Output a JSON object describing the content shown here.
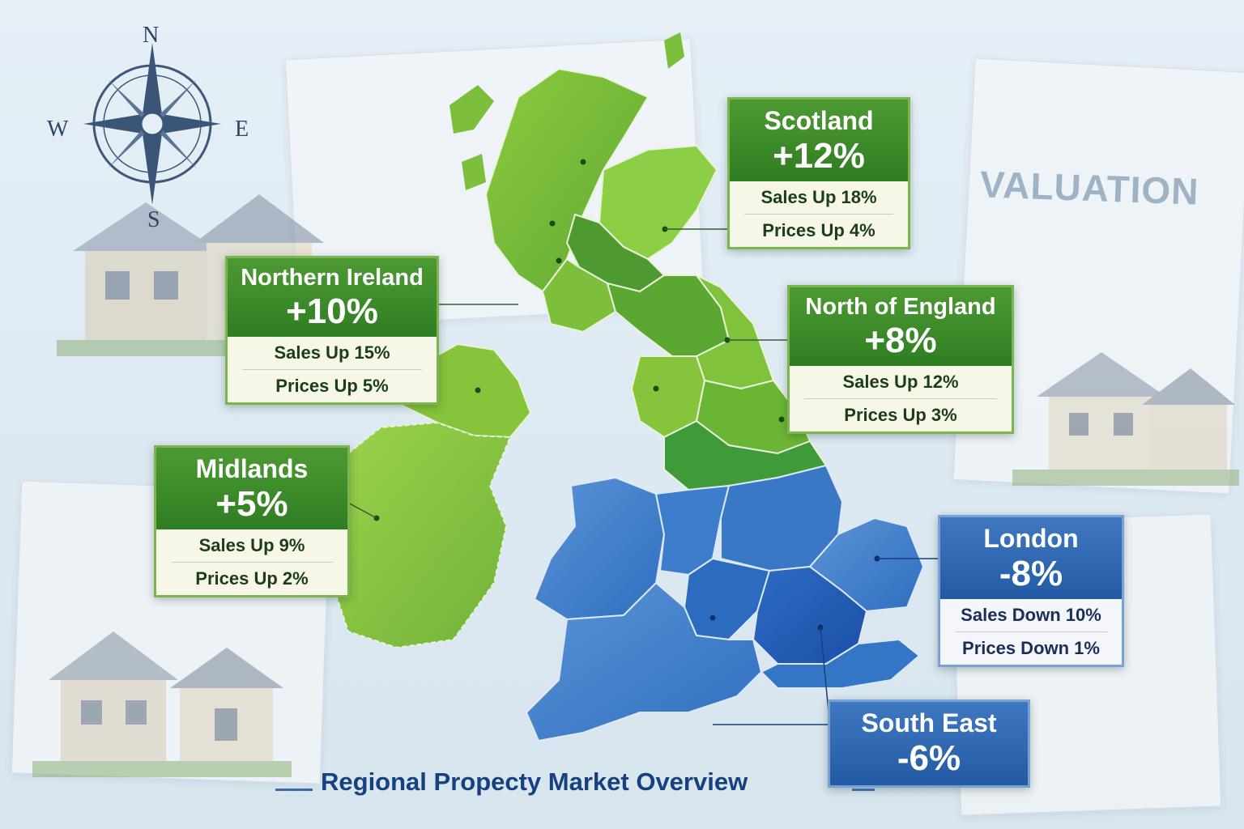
{
  "title": "Regional Propecty Market Overview",
  "background_text": "VALUATION",
  "compass": {
    "north": "N",
    "south": "S",
    "east": "E",
    "west": "W"
  },
  "colors": {
    "growth": "#4d9a33",
    "decline": "#235aa4"
  },
  "regions": [
    {
      "id": "scotland",
      "name": "Scotland",
      "change": "+12%",
      "sales": "Sales Up 18%",
      "prices": "Prices Up 4%",
      "trend": "up"
    },
    {
      "id": "northern-ireland",
      "name": "Northern Ireland",
      "change": "+10%",
      "sales": "Sales Up 15%",
      "prices": "Prices Up 5%",
      "trend": "up"
    },
    {
      "id": "north-of-england",
      "name": "North of England",
      "change": "+8%",
      "sales": "Sales Up 12%",
      "prices": "Prices Up 3%",
      "trend": "up"
    },
    {
      "id": "midlands",
      "name": "Midlands",
      "change": "+5%",
      "sales": "Sales Up 9%",
      "prices": "Prices Up 2%",
      "trend": "up"
    },
    {
      "id": "london",
      "name": "London",
      "change": "-8%",
      "sales": "Sales Down 10%",
      "prices": "Prices Down 1%",
      "trend": "down"
    },
    {
      "id": "south-east",
      "name": "South East",
      "change": "-6%",
      "trend": "down"
    }
  ]
}
